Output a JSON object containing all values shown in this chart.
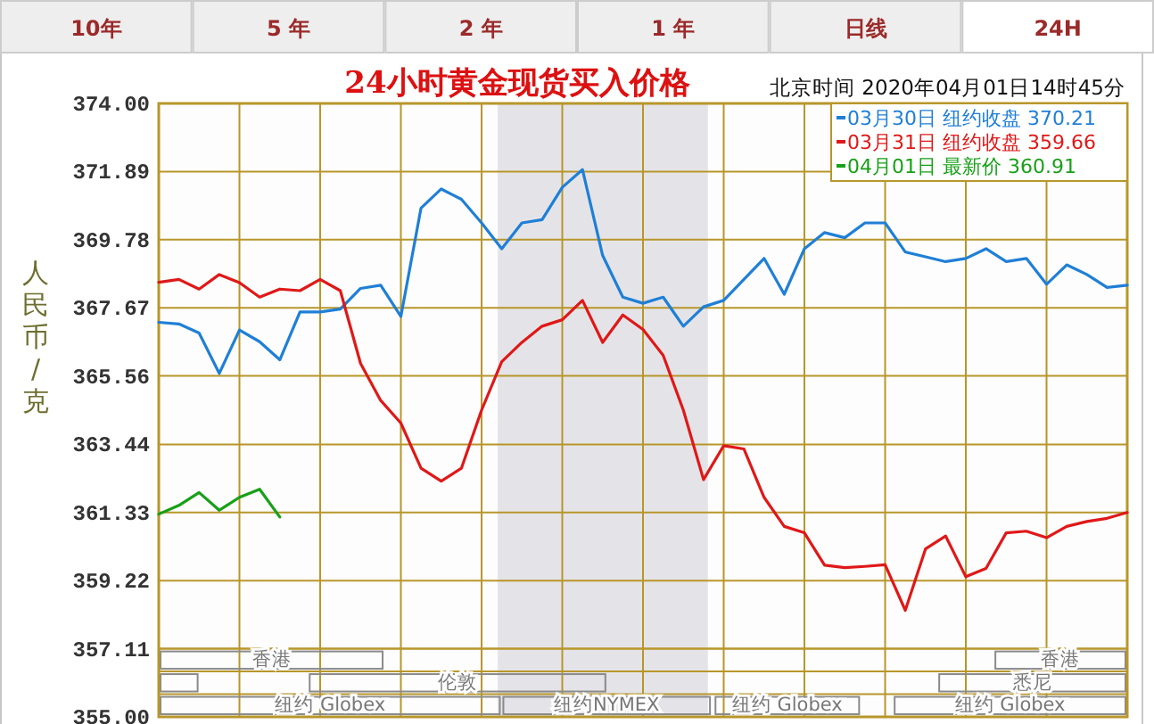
{
  "chart_data": {
    "type": "line",
    "title": "24小时黄金现货买入价格",
    "subtitle": "北京时间  2020年04月01日14时45分",
    "ylabel": "人民币/克",
    "annotations": [
      "10年",
      "5 年",
      "2 年",
      "1 年",
      "日线",
      "24H",
      "香港",
      "香港",
      "伦敦",
      "悉尼",
      "纽约 Globex",
      "纽约NYMEX",
      "纽约 Globex",
      "纽约 Globex"
    ],
    "categories": [
      null,
      null,
      null,
      null,
      null,
      null,
      null,
      null,
      null,
      null,
      null,
      null,
      null,
      null,
      null,
      null,
      null,
      null,
      null,
      null,
      null,
      null,
      null,
      null,
      null,
      null,
      null,
      null,
      null,
      null,
      null,
      null,
      null,
      null,
      null,
      null,
      null,
      null,
      null,
      null,
      null,
      null,
      null,
      null,
      null,
      null,
      null,
      null,
      null
    ],
    "ylim": [
      355,
      374
    ],
    "yticks": [
      {
        "value": 355,
        "label": "355.00"
      },
      357.11,
      359.22,
      361.33,
      363.44,
      365.56,
      367.67,
      369.78,
      371.89,
      {
        "value": 374,
        "label": "374.00"
      }
    ],
    "grid": true,
    "legend": "top right",
    "series": [
      {
        "name": "03月30日  纽约收盘 370.21",
        "color": "#1f7fd6",
        "values": [
          367.22,
          367.17,
          366.89,
          365.64,
          366.98,
          366.62,
          366.06,
          367.54,
          367.54,
          367.63,
          368.27,
          368.37,
          367.4,
          370.76,
          371.35,
          371.03,
          370.3,
          369.5,
          370.3,
          370.4,
          371.4,
          371.95,
          369.29,
          368.0,
          367.81,
          368.0,
          367.1,
          367.7,
          367.9,
          368.55,
          369.2,
          368.09,
          369.5,
          370.0,
          369.84,
          370.3,
          370.3,
          369.4,
          369.25,
          369.1,
          369.2,
          369.5,
          369.1,
          369.2,
          368.4,
          369.0,
          368.7,
          368.3,
          368.37
        ]
      },
      {
        "name": "03月31日  纽约收盘 359.66",
        "color": "#e01818",
        "values": [
          368.46,
          368.55,
          368.25,
          368.7,
          368.45,
          368.0,
          368.25,
          368.2,
          368.55,
          368.2,
          365.95,
          364.8,
          364.1,
          362.7,
          362.3,
          362.7,
          364.5,
          366.0,
          366.6,
          367.1,
          367.3,
          367.9,
          366.6,
          367.45,
          367.0,
          366.2,
          364.5,
          362.35,
          363.4,
          363.3,
          361.8,
          360.9,
          360.7,
          359.7,
          359.62,
          359.66,
          359.71,
          358.3,
          360.2,
          360.6,
          359.34,
          359.6,
          360.7,
          360.75,
          360.55,
          360.9,
          361.05,
          361.15,
          361.33
        ]
      },
      {
        "name": "04月01日      最新价 360.91",
        "color": "#18a018",
        "values": [
          361.28,
          361.55,
          361.95,
          361.4,
          361.8,
          362.05,
          361.19,
          null,
          null,
          null,
          null,
          null,
          null,
          null,
          null,
          null,
          null,
          null,
          null,
          null,
          null,
          null,
          null,
          null,
          null,
          null,
          null,
          null,
          null,
          null,
          null,
          null,
          null,
          null,
          null,
          null,
          null,
          null,
          null,
          null,
          null,
          null,
          null,
          null,
          null,
          null,
          null,
          null,
          null
        ]
      }
    ]
  }
}
